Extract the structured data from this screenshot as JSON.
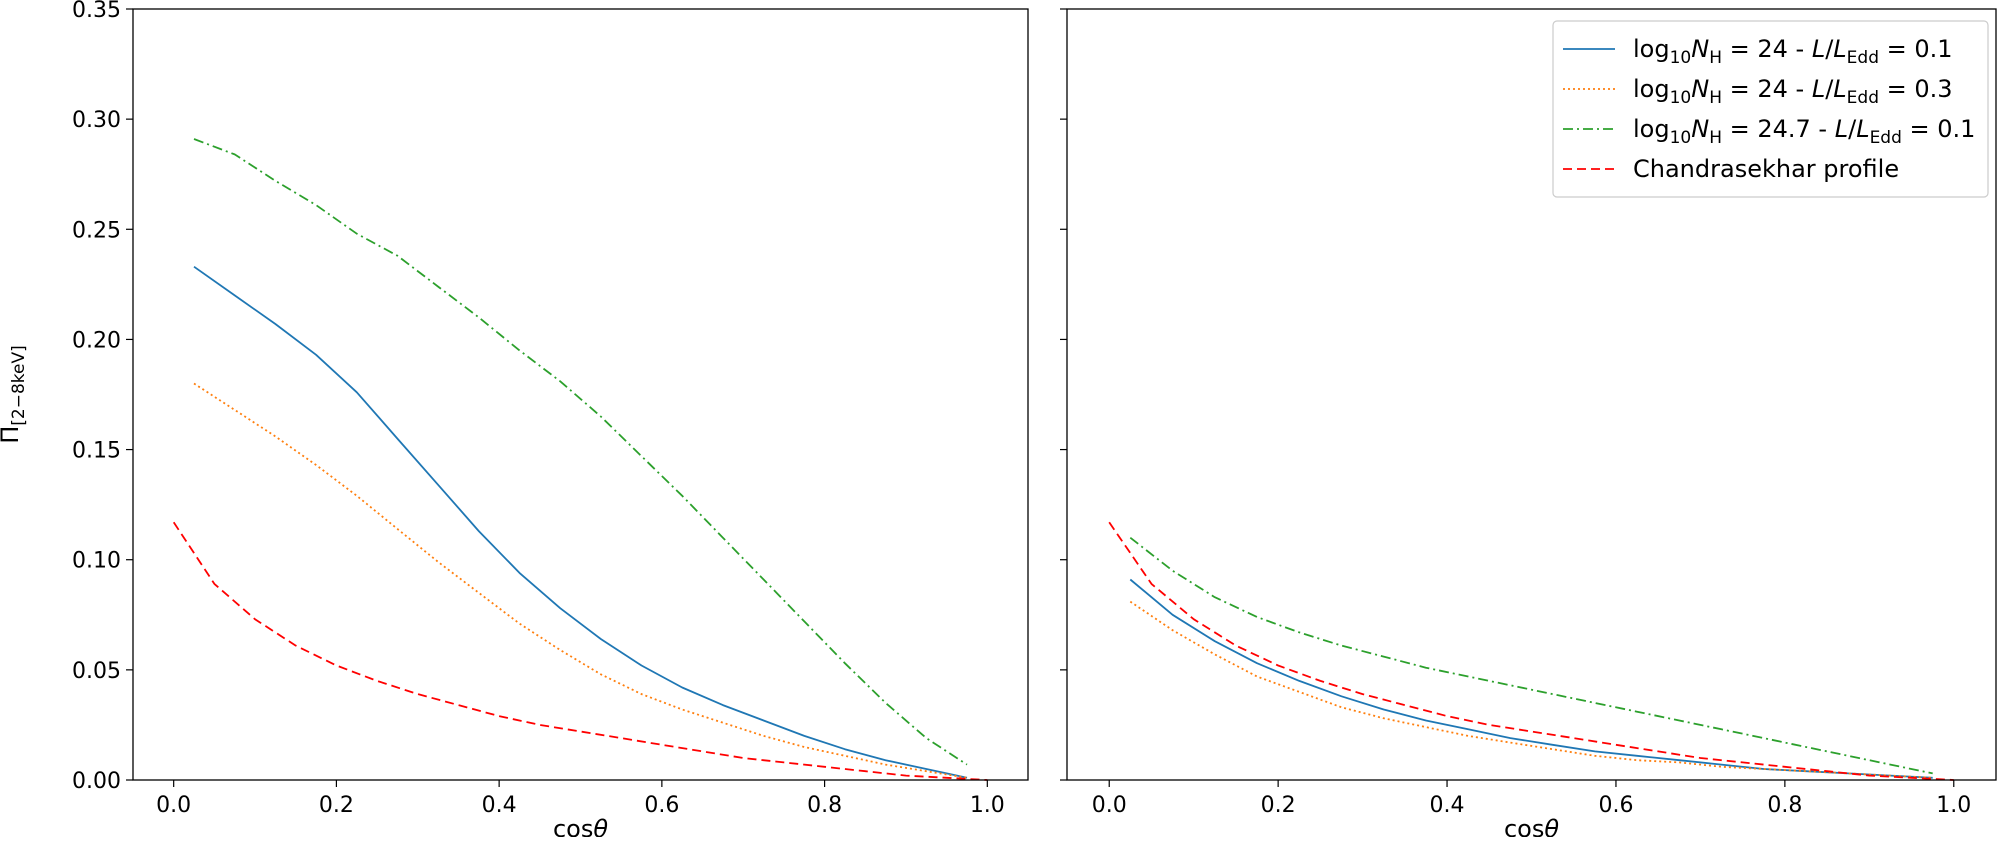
{
  "chart_data": [
    {
      "type": "line",
      "panel": "left",
      "xlabel": "cosθ",
      "ylabel": "Π[2−8keV]",
      "xlim": [
        -0.05,
        1.05
      ],
      "ylim": [
        0,
        0.35
      ],
      "xticks": [
        0.0,
        0.2,
        0.4,
        0.6,
        0.8,
        1.0
      ],
      "yticks": [
        0.0,
        0.05,
        0.1,
        0.15,
        0.2,
        0.25,
        0.3,
        0.35
      ],
      "xtick_labels": [
        "0.0",
        "0.2",
        "0.4",
        "0.6",
        "0.8",
        "1.0"
      ],
      "ytick_labels": [
        "0.00",
        "0.05",
        "0.10",
        "0.15",
        "0.20",
        "0.25",
        "0.30",
        "0.35"
      ],
      "grid": false,
      "series": [
        {
          "legend_key": "nh24_l01",
          "color": "#1f77b4",
          "style": "solid",
          "x": [
            0.025,
            0.075,
            0.125,
            0.175,
            0.225,
            0.275,
            0.325,
            0.375,
            0.425,
            0.475,
            0.525,
            0.575,
            0.625,
            0.675,
            0.725,
            0.775,
            0.825,
            0.875,
            0.925,
            0.975
          ],
          "y": [
            0.233,
            0.22,
            0.207,
            0.193,
            0.176,
            0.155,
            0.134,
            0.113,
            0.094,
            0.078,
            0.064,
            0.052,
            0.042,
            0.034,
            0.027,
            0.02,
            0.014,
            0.009,
            0.005,
            0.001
          ]
        },
        {
          "legend_key": "nh24_l03",
          "color": "#ff7f0e",
          "style": "dotted",
          "x": [
            0.025,
            0.075,
            0.125,
            0.175,
            0.225,
            0.275,
            0.325,
            0.375,
            0.425,
            0.475,
            0.525,
            0.575,
            0.625,
            0.675,
            0.725,
            0.775,
            0.825,
            0.875,
            0.925,
            0.975
          ],
          "y": [
            0.18,
            0.168,
            0.156,
            0.143,
            0.129,
            0.114,
            0.099,
            0.085,
            0.071,
            0.059,
            0.048,
            0.039,
            0.032,
            0.026,
            0.02,
            0.015,
            0.011,
            0.007,
            0.004,
            0.001
          ]
        },
        {
          "legend_key": "nh247_l01",
          "color": "#2ca02c",
          "style": "dashdot",
          "x": [
            0.025,
            0.075,
            0.125,
            0.175,
            0.225,
            0.275,
            0.325,
            0.375,
            0.425,
            0.475,
            0.525,
            0.575,
            0.625,
            0.675,
            0.725,
            0.775,
            0.825,
            0.875,
            0.925,
            0.975
          ],
          "y": [
            0.291,
            0.284,
            0.272,
            0.261,
            0.248,
            0.238,
            0.224,
            0.21,
            0.195,
            0.181,
            0.165,
            0.147,
            0.129,
            0.11,
            0.091,
            0.072,
            0.053,
            0.035,
            0.019,
            0.007
          ]
        },
        {
          "legend_key": "chandrasekhar",
          "color": "#ff0000",
          "style": "dashed",
          "x": [
            0.0,
            0.05,
            0.1,
            0.15,
            0.2,
            0.25,
            0.3,
            0.35,
            0.4,
            0.45,
            0.5,
            0.55,
            0.6,
            0.65,
            0.7,
            0.75,
            0.8,
            0.85,
            0.9,
            0.95,
            1.0
          ],
          "y": [
            0.117,
            0.089,
            0.073,
            0.061,
            0.052,
            0.045,
            0.039,
            0.034,
            0.029,
            0.025,
            0.022,
            0.019,
            0.016,
            0.013,
            0.01,
            0.008,
            0.006,
            0.004,
            0.002,
            0.001,
            0.0
          ]
        }
      ]
    },
    {
      "type": "line",
      "panel": "right",
      "xlabel": "cosθ",
      "xlim": [
        -0.05,
        1.05
      ],
      "ylim": [
        0,
        0.35
      ],
      "xticks": [
        0.0,
        0.2,
        0.4,
        0.6,
        0.8,
        1.0
      ],
      "yticks": [
        0.0,
        0.05,
        0.1,
        0.15,
        0.2,
        0.25,
        0.3,
        0.35
      ],
      "xtick_labels": [
        "0.0",
        "0.2",
        "0.4",
        "0.6",
        "0.8",
        "1.0"
      ],
      "grid": false,
      "legend_position": "top-right",
      "legend": [
        {
          "key": "nh24_l01",
          "label": "log₁₀N_H = 24 - L/L_Edd = 0.1",
          "color": "#1f77b4",
          "style": "solid"
        },
        {
          "key": "nh24_l03",
          "label": "log₁₀N_H = 24 - L/L_Edd = 0.3",
          "color": "#ff7f0e",
          "style": "dotted"
        },
        {
          "key": "nh247_l01",
          "label": "log₁₀N_H = 24.7 - L/L_Edd = 0.1",
          "color": "#2ca02c",
          "style": "dashdot"
        },
        {
          "key": "chandrasekhar",
          "label": "Chandrasekhar profile",
          "color": "#ff0000",
          "style": "dashed"
        }
      ],
      "series": [
        {
          "legend_key": "nh24_l01",
          "color": "#1f77b4",
          "style": "solid",
          "x": [
            0.025,
            0.075,
            0.125,
            0.175,
            0.225,
            0.275,
            0.325,
            0.375,
            0.425,
            0.475,
            0.525,
            0.575,
            0.625,
            0.675,
            0.725,
            0.775,
            0.825,
            0.875,
            0.925,
            0.975
          ],
          "y": [
            0.091,
            0.075,
            0.063,
            0.053,
            0.045,
            0.038,
            0.032,
            0.027,
            0.023,
            0.019,
            0.016,
            0.013,
            0.011,
            0.009,
            0.007,
            0.005,
            0.004,
            0.003,
            0.002,
            0.001
          ]
        },
        {
          "legend_key": "nh24_l03",
          "color": "#ff7f0e",
          "style": "dotted",
          "x": [
            0.025,
            0.075,
            0.125,
            0.175,
            0.225,
            0.275,
            0.325,
            0.375,
            0.425,
            0.475,
            0.525,
            0.575,
            0.625,
            0.675,
            0.725,
            0.775,
            0.825,
            0.875,
            0.925,
            0.975
          ],
          "y": [
            0.081,
            0.068,
            0.057,
            0.047,
            0.04,
            0.033,
            0.028,
            0.024,
            0.02,
            0.017,
            0.014,
            0.011,
            0.009,
            0.008,
            0.006,
            0.005,
            0.004,
            0.003,
            0.002,
            0.001
          ]
        },
        {
          "legend_key": "nh247_l01",
          "color": "#2ca02c",
          "style": "dashdot",
          "x": [
            0.025,
            0.075,
            0.125,
            0.175,
            0.225,
            0.275,
            0.325,
            0.375,
            0.425,
            0.475,
            0.525,
            0.575,
            0.625,
            0.675,
            0.725,
            0.775,
            0.825,
            0.875,
            0.925,
            0.975
          ],
          "y": [
            0.11,
            0.095,
            0.083,
            0.074,
            0.067,
            0.061,
            0.056,
            0.051,
            0.047,
            0.043,
            0.039,
            0.035,
            0.031,
            0.027,
            0.023,
            0.019,
            0.015,
            0.011,
            0.007,
            0.003
          ]
        },
        {
          "legend_key": "chandrasekhar",
          "color": "#ff0000",
          "style": "dashed",
          "x": [
            0.0,
            0.05,
            0.1,
            0.15,
            0.2,
            0.25,
            0.3,
            0.35,
            0.4,
            0.45,
            0.5,
            0.55,
            0.6,
            0.65,
            0.7,
            0.75,
            0.8,
            0.85,
            0.9,
            0.95,
            1.0
          ],
          "y": [
            0.117,
            0.089,
            0.073,
            0.061,
            0.052,
            0.045,
            0.039,
            0.034,
            0.029,
            0.025,
            0.022,
            0.019,
            0.016,
            0.013,
            0.01,
            0.008,
            0.006,
            0.004,
            0.002,
            0.001,
            0.0
          ]
        }
      ]
    }
  ]
}
